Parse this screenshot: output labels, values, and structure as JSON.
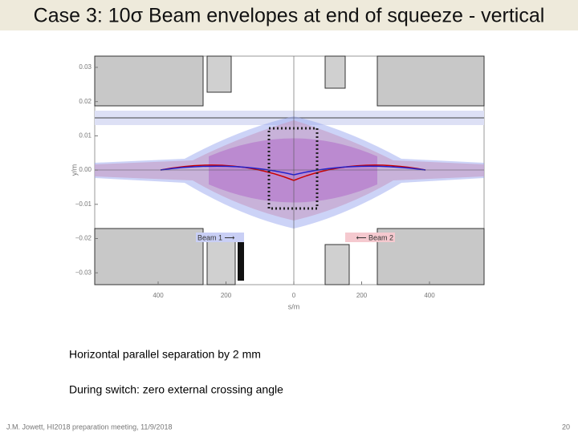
{
  "slide": {
    "title": "Case 3: 10σ Beam envelopes at end of squeeze - vertical",
    "plot": {
      "y_label": "y/m",
      "x_label": "s/m",
      "y_ticks": [
        "0.03",
        "0.02",
        "0.01",
        "0.00",
        "−0.01",
        "−0.02",
        "−0.03"
      ],
      "x_ticks": [
        "400",
        "200",
        "0",
        "200",
        "400"
      ],
      "beam1": "Beam 1 ⟶",
      "beam2": "⟵ Beam 2"
    },
    "bullets": [
      "Horizontal parallel separation by 2 mm",
      "During switch:  zero external crossing angle"
    ],
    "footer": "J.M. Jowett, HI2018 preparation meeting, 11/9/2018",
    "page": "20"
  }
}
